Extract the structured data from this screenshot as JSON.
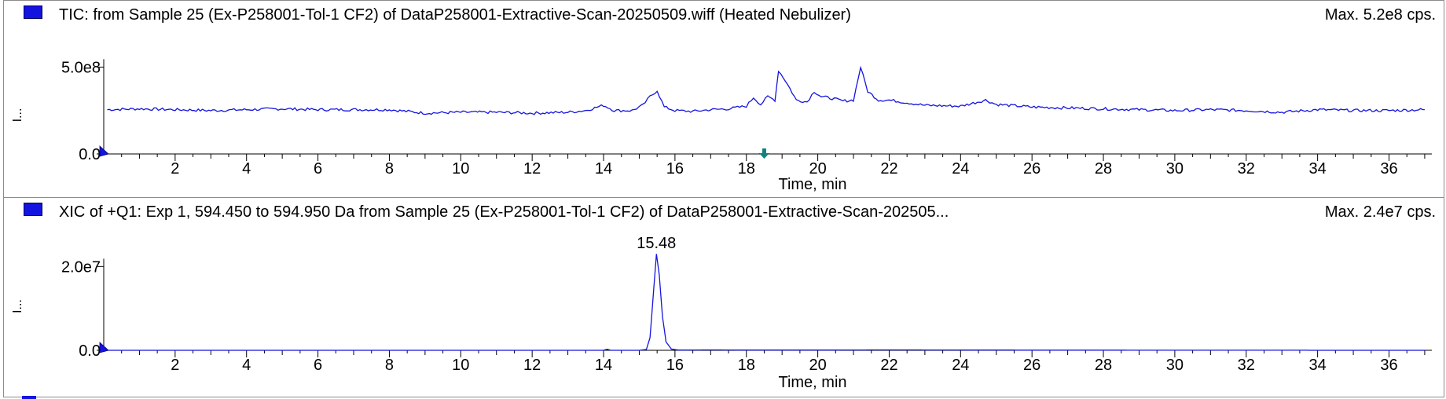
{
  "colors": {
    "trace": "#1414e0",
    "marker": "#1414e0",
    "arrow": "#118080",
    "axis": "#000000",
    "frame": "#8c8c8c"
  },
  "icons": {
    "series_marker": "blue-square-icon",
    "collapse": "ellipsis-icon",
    "baseline": "blue-triangle-icon",
    "nav": "down-arrow-icon"
  },
  "panels": [
    {
      "title": "TIC: from Sample 25 (Ex-P258001-Tol-1 CF2) of DataP258001-Extractive-Scan-20250509.wiff (Heated Nebulizer)",
      "max_label": "Max. 5.2e8 cps.",
      "collapse_glyph": "I...",
      "xlabel": "Time, min"
    },
    {
      "title": "XIC of +Q1: Exp 1, 594.450 to 594.950 Da from Sample 25 (Ex-P258001-Tol-1 CF2) of DataP258001-Extractive-Scan-202505...",
      "max_label": "Max. 2.4e7 cps.",
      "collapse_glyph": "I...",
      "xlabel": "Time, min"
    }
  ],
  "chart_data": [
    {
      "type": "line",
      "title": "TIC: from Sample 25 (Ex-P258001-Tol-1 CF2) of DataP258001-Extractive-Scan-20250509.wiff (Heated Nebulizer)",
      "xlabel": "Time, min",
      "ylabel": "",
      "xlim": [
        0,
        37.2
      ],
      "ylim": [
        0,
        520000000.0
      ],
      "x_ticks": [
        2,
        4,
        6,
        8,
        10,
        12,
        14,
        16,
        18,
        20,
        22,
        24,
        26,
        28,
        30,
        32,
        34,
        36
      ],
      "y_ticks": [
        {
          "value": 0,
          "label": "0.0"
        },
        {
          "value": 500000000.0,
          "label": "5.0e8"
        }
      ],
      "nav_arrow_x": 18.5,
      "series": [
        {
          "x": [
            0.1,
            1,
            2,
            3,
            4,
            5,
            6,
            7,
            8,
            9,
            10,
            11,
            12,
            13,
            13.5,
            14,
            14.3,
            14.8,
            15.1,
            15.3,
            15.5,
            15.7,
            16,
            16.5,
            17,
            17.5,
            18,
            18.2,
            18.4,
            18.6,
            18.8,
            18.9,
            19.1,
            19.4,
            19.7,
            19.9,
            20.1,
            20.4,
            20.7,
            21,
            21.2,
            21.4,
            21.7,
            22,
            22.5,
            23,
            24,
            24.7,
            25,
            26,
            27,
            28,
            29,
            30,
            31,
            32,
            33,
            34,
            35,
            36,
            37
          ],
          "y": [
            255000000.0,
            260000000.0,
            255000000.0,
            250000000.0,
            255000000.0,
            260000000.0,
            255000000.0,
            255000000.0,
            255000000.0,
            235000000.0,
            240000000.0,
            240000000.0,
            235000000.0,
            240000000.0,
            250000000.0,
            280000000.0,
            250000000.0,
            250000000.0,
            280000000.0,
            330000000.0,
            365000000.0,
            270000000.0,
            250000000.0,
            245000000.0,
            255000000.0,
            260000000.0,
            275000000.0,
            325000000.0,
            285000000.0,
            330000000.0,
            310000000.0,
            480000000.0,
            420000000.0,
            310000000.0,
            300000000.0,
            360000000.0,
            330000000.0,
            320000000.0,
            305000000.0,
            310000000.0,
            500000000.0,
            360000000.0,
            310000000.0,
            310000000.0,
            295000000.0,
            280000000.0,
            275000000.0,
            310000000.0,
            285000000.0,
            270000000.0,
            265000000.0,
            260000000.0,
            255000000.0,
            250000000.0,
            255000000.0,
            250000000.0,
            240000000.0,
            255000000.0,
            250000000.0,
            250000000.0,
            255000000.0
          ]
        }
      ]
    },
    {
      "type": "line",
      "title": "XIC of +Q1: Exp 1, 594.450 to 594.950 Da from Sample 25 (Ex-P258001-Tol-1 CF2) of DataP258001-Extractive-Scan-202505...",
      "xlabel": "Time, min",
      "ylabel": "",
      "xlim": [
        0,
        37.2
      ],
      "ylim": [
        0,
        24000000.0
      ],
      "x_ticks": [
        2,
        4,
        6,
        8,
        10,
        12,
        14,
        16,
        18,
        20,
        22,
        24,
        26,
        28,
        30,
        32,
        34,
        36
      ],
      "y_ticks": [
        {
          "value": 0,
          "label": "0.0"
        },
        {
          "value": 20000000.0,
          "label": "2.0e7"
        }
      ],
      "peak_label": {
        "x": 15.48,
        "text": "15.48"
      },
      "series": [
        {
          "x": [
            0.1,
            5,
            10,
            13.5,
            14.0,
            14.1,
            14.2,
            15.0,
            15.2,
            15.3,
            15.4,
            15.48,
            15.56,
            15.65,
            15.75,
            15.9,
            16.1,
            17,
            18,
            20,
            22,
            25,
            30,
            37
          ],
          "y": [
            0,
            0,
            0,
            0,
            0,
            250000.0,
            0,
            0,
            200000.0,
            3000000.0,
            14000000.0,
            23000000.0,
            18000000.0,
            8000000.0,
            2000000.0,
            300000.0,
            50000.0,
            100000.0,
            50000.0,
            50000.0,
            100000.0,
            50000.0,
            20000.0,
            0
          ]
        }
      ]
    }
  ]
}
